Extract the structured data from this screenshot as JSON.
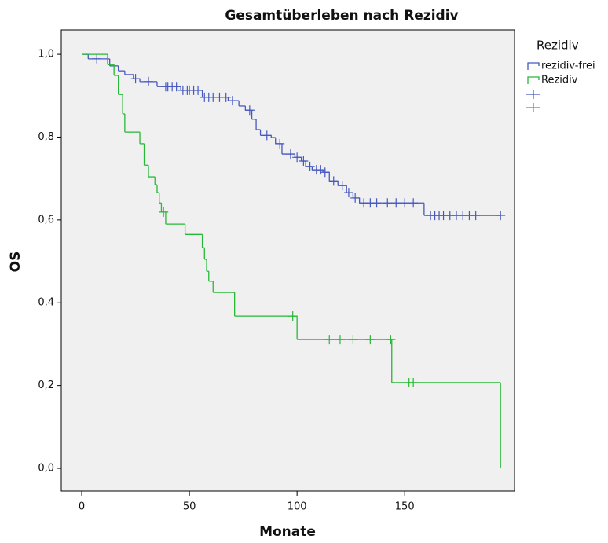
{
  "chart_data": {
    "type": "step",
    "title": "Gesamtüberleben nach Rezidiv",
    "x_label": "Monate",
    "y_label": "OS",
    "legend_title": "Rezidiv",
    "xlim": [
      -9.5,
      201
    ],
    "ylim": [
      -0.055,
      1.059
    ],
    "xticks": [
      0,
      50,
      100,
      150
    ],
    "yticks": [
      {
        "value": 0,
        "label": "0,0"
      },
      {
        "value": 0.2,
        "label": "0,2"
      },
      {
        "value": 0.4,
        "label": "0,4"
      },
      {
        "value": 0.6,
        "label": "0,6"
      },
      {
        "value": 0.8,
        "label": "0,8"
      },
      {
        "value": 1,
        "label": "1,0"
      }
    ],
    "series": [
      {
        "name": "rezidiv-frei",
        "color": "#4658c0",
        "x": [
          0,
          3,
          13,
          17,
          20,
          24,
          27,
          35,
          46,
          56,
          68,
          73,
          76,
          79,
          81,
          83,
          88,
          90,
          93,
          99,
          102,
          104,
          107,
          112,
          115,
          119,
          123,
          126,
          129,
          159
        ],
        "values": [
          1,
          0.989,
          0.972,
          0.96,
          0.951,
          0.941,
          0.934,
          0.922,
          0.913,
          0.896,
          0.888,
          0.875,
          0.865,
          0.843,
          0.818,
          0.804,
          0.799,
          0.784,
          0.759,
          0.751,
          0.742,
          0.729,
          0.721,
          0.715,
          0.694,
          0.683,
          0.666,
          0.653,
          0.641,
          0.611
        ],
        "censored_x": [
          7,
          25,
          31,
          39,
          40,
          42,
          44,
          47,
          49,
          50,
          52,
          54,
          57,
          59,
          61,
          64,
          67,
          70,
          78,
          86,
          92,
          97,
          100,
          103,
          106,
          109,
          111,
          113,
          117,
          121,
          124,
          127,
          131,
          134,
          137,
          142,
          146,
          150,
          154,
          162,
          164,
          166,
          168,
          171,
          174,
          177,
          180,
          183,
          194.5
        ]
      },
      {
        "name": "Rezidiv",
        "color": "#27b836",
        "x": [
          0,
          12,
          15,
          17,
          19,
          20,
          27,
          29,
          31,
          34,
          35,
          36,
          37,
          39,
          48,
          56,
          57,
          58,
          59,
          61,
          71,
          100,
          144,
          194.5
        ],
        "values": [
          1,
          0.975,
          0.949,
          0.903,
          0.856,
          0.812,
          0.784,
          0.732,
          0.704,
          0.685,
          0.666,
          0.641,
          0.619,
          0.59,
          0.565,
          0.533,
          0.505,
          0.476,
          0.452,
          0.425,
          0.368,
          0.311,
          0.207,
          0
        ],
        "censored_x": [
          38,
          98,
          115,
          120,
          126,
          134,
          143.5,
          152,
          154
        ]
      }
    ]
  }
}
